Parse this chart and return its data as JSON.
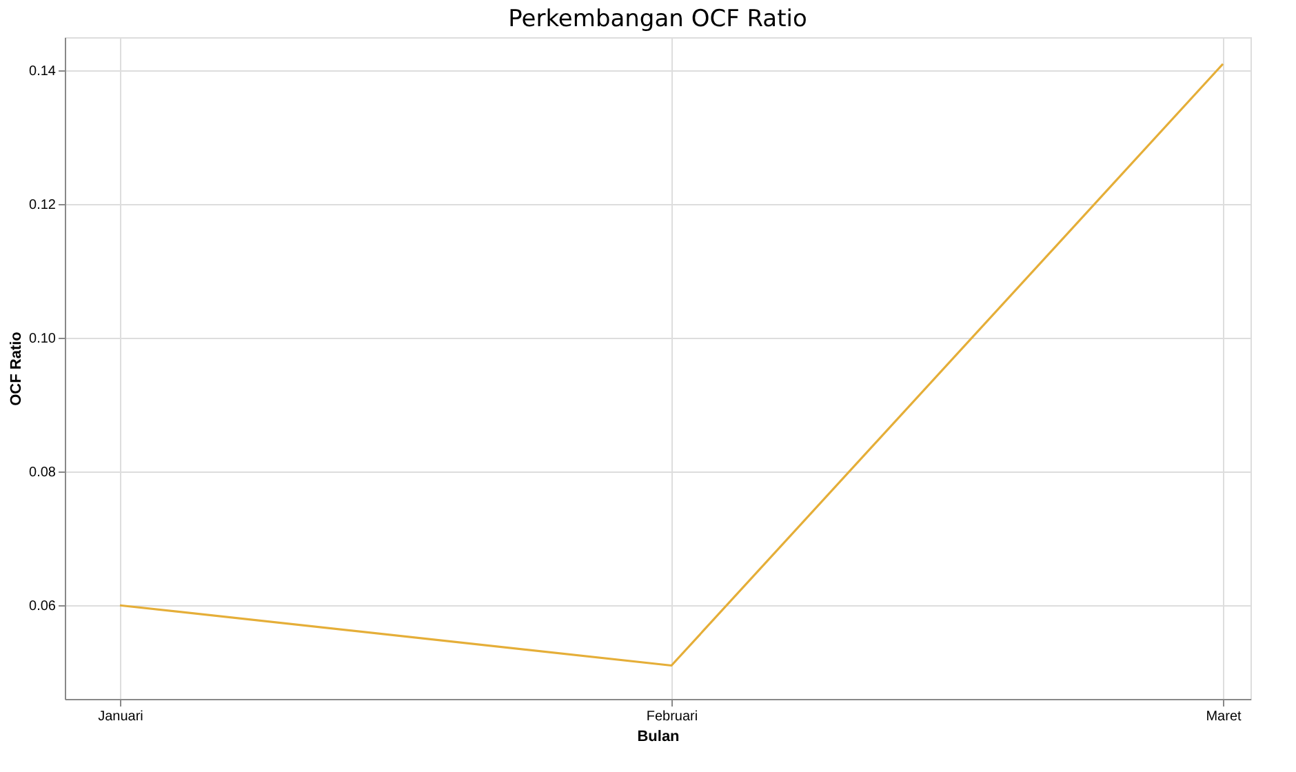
{
  "chart_data": {
    "type": "line",
    "title": "Perkembangan OCF Ratio",
    "xlabel": "Bulan",
    "ylabel": "OCF Ratio",
    "categories": [
      "Januari",
      "Februari",
      "Maret"
    ],
    "series": [
      {
        "color": "#e5ae38",
        "values": [
          0.06,
          0.051,
          0.141
        ]
      }
    ],
    "ylim": [
      0.046,
      0.145
    ],
    "yticks": [
      {
        "value": 0.06,
        "label": "0.06"
      },
      {
        "value": 0.08,
        "label": "0.08"
      },
      {
        "value": 0.1,
        "label": "0.10"
      },
      {
        "value": 0.12,
        "label": "0.12"
      },
      {
        "value": 0.14,
        "label": "0.14"
      }
    ],
    "grid": true,
    "marker": "none",
    "line_style": "solid"
  }
}
